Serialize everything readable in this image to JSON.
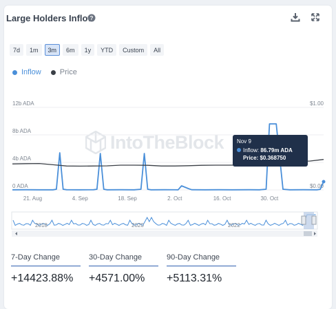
{
  "widget": {
    "title": "Large Holders Inflow",
    "help_icon": "question-circle-icon",
    "download_icon": "download-icon",
    "expand_icon": "fullscreen-icon"
  },
  "timeframes": [
    {
      "label": "7d",
      "active": false
    },
    {
      "label": "1m",
      "active": false
    },
    {
      "label": "3m",
      "active": true
    },
    {
      "label": "6m",
      "active": false
    },
    {
      "label": "1y",
      "active": false
    },
    {
      "label": "YTD",
      "active": false
    },
    {
      "label": "Custom",
      "active": false
    },
    {
      "label": "All",
      "active": false
    }
  ],
  "legend": [
    {
      "label": "Inflow",
      "color": "#4a8fd9"
    },
    {
      "label": "Price",
      "color": "#3a3f46"
    }
  ],
  "watermark": "IntoTheBlock",
  "tooltip": {
    "date": "Nov 9",
    "inflow_label": "Inflow:",
    "inflow_value": "86.79m ADA",
    "price_label": "Price:",
    "price_value": "$0.368750"
  },
  "chart_data": {
    "type": "line",
    "x_ticks": [
      "21. Aug",
      "4. Sep",
      "18. Sep",
      "2. Oct",
      "16. Oct",
      "30. Oct"
    ],
    "y_left_ticks": [
      "0 ADA",
      "4b ADA",
      "8b ADA",
      "12b ADA"
    ],
    "y_left_range": [
      0,
      12
    ],
    "y_right_ticks": [
      "$0.00",
      "$1.00"
    ],
    "y_right_range": [
      0,
      1
    ],
    "x_range_days": [
      0,
      92
    ],
    "x_tick_days": [
      6,
      20,
      34,
      48,
      62,
      76
    ],
    "series": [
      {
        "name": "Inflow",
        "color": "#4a8fd9",
        "unit": "b ADA",
        "points": [
          [
            0,
            0.02
          ],
          [
            4,
            0.03
          ],
          [
            8,
            0.02
          ],
          [
            12,
            0.02
          ],
          [
            13,
            0.1
          ],
          [
            14,
            5.4
          ],
          [
            15,
            0.1
          ],
          [
            16,
            0.03
          ],
          [
            20,
            0.02
          ],
          [
            24,
            0.03
          ],
          [
            25,
            0.1
          ],
          [
            26,
            5.3
          ],
          [
            27,
            0.1
          ],
          [
            28,
            0.02
          ],
          [
            32,
            0.03
          ],
          [
            36,
            0.02
          ],
          [
            38,
            0.1
          ],
          [
            39,
            5.3
          ],
          [
            40,
            0.1
          ],
          [
            41,
            0.02
          ],
          [
            45,
            0.03
          ],
          [
            49,
            0.02
          ],
          [
            50,
            0.6
          ],
          [
            52,
            0.2
          ],
          [
            53,
            0.03
          ],
          [
            57,
            0.02
          ],
          [
            61,
            0.03
          ],
          [
            65,
            0.02
          ],
          [
            70,
            0.03
          ],
          [
            73,
            0.02
          ],
          [
            75,
            0.1
          ],
          [
            76,
            9.6
          ],
          [
            78,
            9.6
          ],
          [
            80,
            0.1
          ],
          [
            82,
            0.02
          ],
          [
            86,
            0.03
          ],
          [
            90,
            0.02
          ],
          [
            91,
            0.09
          ],
          [
            92,
            1.2
          ]
        ]
      },
      {
        "name": "Price",
        "color": "#3a3f46",
        "unit": "USD",
        "points": [
          [
            0,
            0.315
          ],
          [
            4,
            0.318
          ],
          [
            8,
            0.32
          ],
          [
            12,
            0.305
          ],
          [
            16,
            0.29
          ],
          [
            20,
            0.288
          ],
          [
            24,
            0.29
          ],
          [
            28,
            0.292
          ],
          [
            32,
            0.3
          ],
          [
            36,
            0.3
          ],
          [
            40,
            0.298
          ],
          [
            44,
            0.29
          ],
          [
            48,
            0.29
          ],
          [
            52,
            0.293
          ],
          [
            56,
            0.298
          ],
          [
            60,
            0.3
          ],
          [
            64,
            0.3
          ],
          [
            68,
            0.302
          ],
          [
            72,
            0.305
          ],
          [
            76,
            0.31
          ],
          [
            80,
            0.33
          ],
          [
            84,
            0.345
          ],
          [
            88,
            0.35
          ],
          [
            92,
            0.3688
          ]
        ]
      }
    ]
  },
  "navigator": {
    "year_labels": [
      "2018",
      "2020",
      "2022"
    ]
  },
  "changes": [
    {
      "label": "7-Day Change",
      "value": "+14423.88%"
    },
    {
      "label": "30-Day Change",
      "value": "+4571.00%"
    },
    {
      "label": "90-Day Change",
      "value": "+5113.31%"
    }
  ]
}
